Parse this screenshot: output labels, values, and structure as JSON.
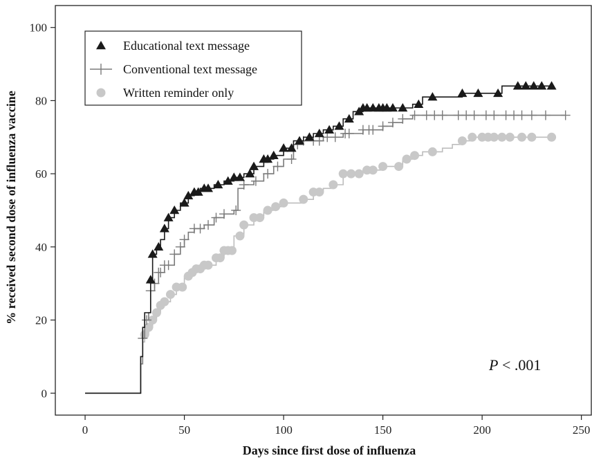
{
  "chart_data": {
    "type": "line",
    "title": "",
    "xlabel": "Days since first dose of influenza",
    "ylabel": "% received second dose of influenza vaccine",
    "xlim": [
      -15,
      255
    ],
    "ylim": [
      -6,
      106
    ],
    "xticks": [
      0,
      50,
      100,
      150,
      200,
      250
    ],
    "yticks": [
      0,
      20,
      40,
      60,
      80,
      100
    ],
    "grid": false,
    "legend_position": "top-left",
    "annotation": {
      "italic": "P",
      "rest": " < .001"
    },
    "series": [
      {
        "name": "Educational text message",
        "marker": "triangle",
        "color": "#1a1a1a",
        "points": [
          [
            0,
            0
          ],
          [
            27,
            0
          ],
          [
            28,
            10
          ],
          [
            29,
            18
          ],
          [
            30,
            22
          ],
          [
            33,
            31
          ],
          [
            34,
            38
          ],
          [
            36,
            40
          ],
          [
            38,
            42
          ],
          [
            40,
            45
          ],
          [
            42,
            48
          ],
          [
            45,
            50
          ],
          [
            48,
            52
          ],
          [
            50,
            52
          ],
          [
            52,
            54
          ],
          [
            55,
            55
          ],
          [
            58,
            56
          ],
          [
            62,
            56
          ],
          [
            65,
            57
          ],
          [
            70,
            58
          ],
          [
            75,
            59
          ],
          [
            80,
            60
          ],
          [
            85,
            62
          ],
          [
            90,
            64
          ],
          [
            95,
            65
          ],
          [
            100,
            67
          ],
          [
            105,
            69
          ],
          [
            110,
            70
          ],
          [
            115,
            71
          ],
          [
            120,
            72
          ],
          [
            125,
            73
          ],
          [
            130,
            75
          ],
          [
            135,
            77
          ],
          [
            140,
            78
          ],
          [
            145,
            78
          ],
          [
            150,
            78
          ],
          [
            155,
            78
          ],
          [
            160,
            78
          ],
          [
            165,
            79
          ],
          [
            170,
            81
          ],
          [
            175,
            81
          ],
          [
            180,
            81
          ],
          [
            190,
            82
          ],
          [
            200,
            82
          ],
          [
            208,
            82
          ],
          [
            210,
            84
          ],
          [
            220,
            84
          ],
          [
            235,
            84
          ]
        ],
        "markers_x": [
          33,
          34,
          37,
          40,
          42,
          45,
          50,
          52,
          55,
          57,
          60,
          62,
          67,
          72,
          75,
          78,
          83,
          85,
          90,
          92,
          95,
          100,
          104,
          108,
          113,
          118,
          123,
          128,
          133,
          138,
          140,
          142,
          145,
          148,
          150,
          152,
          155,
          160,
          168,
          175,
          190,
          198,
          208,
          218,
          222,
          226,
          230,
          235
        ]
      },
      {
        "name": "Conventional text message",
        "marker": "plus",
        "color": "#7a7a7a",
        "points": [
          [
            0,
            0
          ],
          [
            27,
            0
          ],
          [
            28,
            8
          ],
          [
            29,
            15
          ],
          [
            30,
            20
          ],
          [
            32,
            22
          ],
          [
            33,
            28
          ],
          [
            35,
            30
          ],
          [
            37,
            33
          ],
          [
            40,
            35
          ],
          [
            45,
            38
          ],
          [
            48,
            40
          ],
          [
            50,
            42
          ],
          [
            52,
            44
          ],
          [
            55,
            45
          ],
          [
            60,
            46
          ],
          [
            65,
            48
          ],
          [
            70,
            49
          ],
          [
            75,
            50
          ],
          [
            77,
            56
          ],
          [
            80,
            57
          ],
          [
            85,
            58
          ],
          [
            90,
            60
          ],
          [
            95,
            62
          ],
          [
            100,
            64
          ],
          [
            105,
            68
          ],
          [
            110,
            69
          ],
          [
            115,
            69
          ],
          [
            120,
            70
          ],
          [
            130,
            71
          ],
          [
            140,
            72
          ],
          [
            150,
            73
          ],
          [
            155,
            74
          ],
          [
            160,
            75
          ],
          [
            165,
            76
          ],
          [
            175,
            76
          ],
          [
            200,
            76
          ],
          [
            242,
            76
          ]
        ],
        "markers_x": [
          29,
          31,
          33,
          35,
          37,
          38,
          40,
          42,
          45,
          48,
          50,
          55,
          58,
          62,
          66,
          70,
          76,
          80,
          86,
          92,
          97,
          104,
          107,
          110,
          115,
          118,
          122,
          126,
          131,
          133,
          140,
          143,
          145,
          150,
          155,
          160,
          166,
          172,
          176,
          180,
          188,
          192,
          196,
          202,
          206,
          212,
          216,
          220,
          225,
          232,
          242
        ]
      },
      {
        "name": "Written reminder only",
        "marker": "circle",
        "color": "#c8c8c8",
        "points": [
          [
            0,
            0
          ],
          [
            27,
            0
          ],
          [
            28,
            10
          ],
          [
            29,
            14
          ],
          [
            30,
            16
          ],
          [
            32,
            18
          ],
          [
            34,
            20
          ],
          [
            36,
            22
          ],
          [
            38,
            24
          ],
          [
            40,
            25
          ],
          [
            43,
            27
          ],
          [
            46,
            29
          ],
          [
            50,
            32
          ],
          [
            53,
            33
          ],
          [
            56,
            34
          ],
          [
            60,
            35
          ],
          [
            63,
            35
          ],
          [
            66,
            37
          ],
          [
            70,
            39
          ],
          [
            75,
            43
          ],
          [
            80,
            46
          ],
          [
            85,
            48
          ],
          [
            90,
            50
          ],
          [
            95,
            51
          ],
          [
            100,
            52
          ],
          [
            110,
            53
          ],
          [
            115,
            55
          ],
          [
            120,
            56
          ],
          [
            125,
            57
          ],
          [
            130,
            60
          ],
          [
            135,
            60
          ],
          [
            140,
            61
          ],
          [
            145,
            61
          ],
          [
            150,
            62
          ],
          [
            160,
            64
          ],
          [
            165,
            65
          ],
          [
            170,
            66
          ],
          [
            180,
            67
          ],
          [
            185,
            68
          ],
          [
            190,
            69
          ],
          [
            195,
            70
          ],
          [
            235,
            70
          ]
        ],
        "markers_x": [
          30,
          32,
          34,
          36,
          38,
          40,
          43,
          46,
          49,
          52,
          54,
          56,
          58,
          60,
          62,
          66,
          68,
          70,
          72,
          74,
          78,
          80,
          85,
          88,
          92,
          96,
          100,
          110,
          115,
          118,
          125,
          130,
          134,
          138,
          142,
          145,
          150,
          158,
          162,
          166,
          175,
          190,
          195,
          200,
          203,
          206,
          210,
          214,
          220,
          225,
          235
        ]
      }
    ]
  }
}
